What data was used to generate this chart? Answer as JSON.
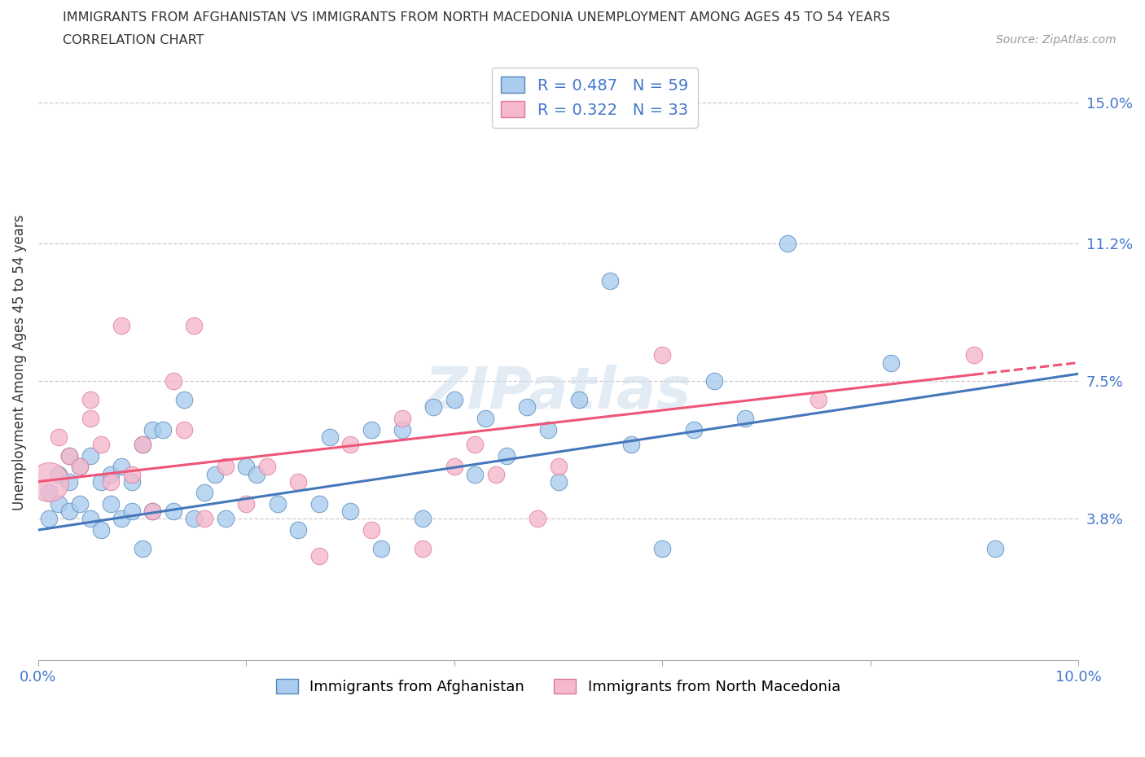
{
  "title_line1": "IMMIGRANTS FROM AFGHANISTAN VS IMMIGRANTS FROM NORTH MACEDONIA UNEMPLOYMENT AMONG AGES 45 TO 54 YEARS",
  "title_line2": "CORRELATION CHART",
  "source": "Source: ZipAtlas.com",
  "ylabel": "Unemployment Among Ages 45 to 54 years",
  "xlim": [
    0.0,
    0.1
  ],
  "ylim": [
    0.0,
    0.16
  ],
  "xtick_positions": [
    0.0,
    0.02,
    0.04,
    0.06,
    0.08,
    0.1
  ],
  "xtick_labels": [
    "0.0%",
    "",
    "",
    "",
    "",
    "10.0%"
  ],
  "ytick_positions": [
    0.038,
    0.075,
    0.112,
    0.15
  ],
  "ytick_labels": [
    "3.8%",
    "7.5%",
    "11.2%",
    "15.0%"
  ],
  "afghanistan_color": "#aaccee",
  "afghanistan_edge": "#5588bb",
  "north_macedonia_color": "#f5b8cc",
  "north_macedonia_edge": "#dd7799",
  "trend_afghanistan": "#4477bb",
  "trend_north_macedonia": "#ee5577",
  "R_afghanistan": 0.487,
  "N_afghanistan": 59,
  "R_north_macedonia": 0.322,
  "N_north_macedonia": 33,
  "legend_label_1": "Immigrants from Afghanistan",
  "legend_label_2": "Immigrants from North Macedonia",
  "afg_intercept": 0.035,
  "afg_slope": 0.42,
  "mac_intercept": 0.048,
  "mac_slope": 0.32,
  "afghanistan_x": [
    0.001,
    0.001,
    0.002,
    0.002,
    0.003,
    0.003,
    0.003,
    0.004,
    0.004,
    0.005,
    0.005,
    0.006,
    0.006,
    0.007,
    0.007,
    0.008,
    0.008,
    0.009,
    0.009,
    0.01,
    0.01,
    0.011,
    0.011,
    0.012,
    0.013,
    0.014,
    0.015,
    0.016,
    0.017,
    0.018,
    0.02,
    0.021,
    0.023,
    0.025,
    0.027,
    0.028,
    0.03,
    0.032,
    0.033,
    0.035,
    0.037,
    0.038,
    0.04,
    0.042,
    0.043,
    0.045,
    0.047,
    0.049,
    0.05,
    0.052,
    0.055,
    0.057,
    0.06,
    0.063,
    0.065,
    0.068,
    0.072,
    0.082,
    0.092
  ],
  "afghanistan_y": [
    0.045,
    0.038,
    0.05,
    0.042,
    0.055,
    0.048,
    0.04,
    0.052,
    0.042,
    0.055,
    0.038,
    0.048,
    0.035,
    0.042,
    0.05,
    0.038,
    0.052,
    0.04,
    0.048,
    0.03,
    0.058,
    0.062,
    0.04,
    0.062,
    0.04,
    0.07,
    0.038,
    0.045,
    0.05,
    0.038,
    0.052,
    0.05,
    0.042,
    0.035,
    0.042,
    0.06,
    0.04,
    0.062,
    0.03,
    0.062,
    0.038,
    0.068,
    0.07,
    0.05,
    0.065,
    0.055,
    0.068,
    0.062,
    0.048,
    0.07,
    0.102,
    0.058,
    0.03,
    0.062,
    0.075,
    0.065,
    0.112,
    0.08,
    0.03
  ],
  "north_macedonia_x": [
    0.001,
    0.002,
    0.003,
    0.004,
    0.005,
    0.005,
    0.006,
    0.007,
    0.008,
    0.009,
    0.01,
    0.011,
    0.013,
    0.014,
    0.015,
    0.016,
    0.018,
    0.02,
    0.022,
    0.025,
    0.027,
    0.03,
    0.032,
    0.035,
    0.037,
    0.04,
    0.042,
    0.044,
    0.048,
    0.05,
    0.06,
    0.075,
    0.09
  ],
  "north_macedonia_y": [
    0.048,
    0.06,
    0.055,
    0.052,
    0.07,
    0.065,
    0.058,
    0.048,
    0.09,
    0.05,
    0.058,
    0.04,
    0.075,
    0.062,
    0.09,
    0.038,
    0.052,
    0.042,
    0.052,
    0.048,
    0.028,
    0.058,
    0.035,
    0.065,
    0.03,
    0.052,
    0.058,
    0.05,
    0.038,
    0.052,
    0.082,
    0.07,
    0.082
  ],
  "north_macedonia_large_x": [
    0.001
  ],
  "north_macedonia_large_y": [
    0.048
  ],
  "watermark_text": "ZIPatlas"
}
